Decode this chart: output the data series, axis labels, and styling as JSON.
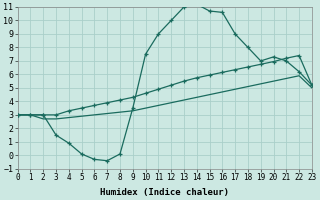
{
  "xlabel": "Humidex (Indice chaleur)",
  "bg_color": "#cce8e2",
  "grid_color": "#aacfca",
  "line_color": "#1a6b5e",
  "xlim": [
    0,
    23
  ],
  "ylim": [
    -1,
    11
  ],
  "xticks": [
    0,
    1,
    2,
    3,
    4,
    5,
    6,
    7,
    8,
    9,
    10,
    11,
    12,
    13,
    14,
    15,
    16,
    17,
    18,
    19,
    20,
    21,
    22,
    23
  ],
  "yticks": [
    -1,
    0,
    1,
    2,
    3,
    4,
    5,
    6,
    7,
    8,
    9,
    10,
    11
  ],
  "curve_big_x": [
    0,
    1,
    2,
    3,
    4,
    5,
    6,
    7,
    8,
    9,
    10,
    11,
    12,
    13,
    14,
    15,
    16,
    17,
    18,
    19,
    20,
    21,
    22,
    23
  ],
  "curve_big_y": [
    3,
    3,
    3,
    1.5,
    0.9,
    0.1,
    -0.3,
    -0.4,
    0.1,
    3.5,
    7.5,
    9.0,
    10.0,
    11.0,
    11.2,
    10.7,
    10.6,
    9.0,
    8.0,
    7.0,
    7.3,
    7.0,
    6.2,
    5.2
  ],
  "curve_upper_x": [
    0,
    1,
    2,
    3,
    4,
    5,
    6,
    7,
    8,
    9,
    10,
    11,
    12,
    13,
    14,
    15,
    16,
    17,
    18,
    19,
    20,
    21,
    22,
    23
  ],
  "curve_upper_y": [
    3,
    3,
    3,
    3,
    3.3,
    3.5,
    3.7,
    3.9,
    4.1,
    4.3,
    4.6,
    4.9,
    5.2,
    5.5,
    5.75,
    5.95,
    6.15,
    6.35,
    6.55,
    6.75,
    6.95,
    7.2,
    7.4,
    5.2
  ],
  "curve_lower_x": [
    0,
    1,
    2,
    3,
    4,
    5,
    6,
    7,
    8,
    9,
    10,
    11,
    12,
    13,
    14,
    15,
    16,
    17,
    18,
    19,
    20,
    21,
    22,
    23
  ],
  "curve_lower_y": [
    3,
    3,
    2.7,
    2.7,
    2.8,
    2.9,
    3.0,
    3.1,
    3.2,
    3.3,
    3.5,
    3.7,
    3.9,
    4.1,
    4.3,
    4.5,
    4.7,
    4.9,
    5.1,
    5.3,
    5.5,
    5.7,
    5.9,
    5.0
  ]
}
